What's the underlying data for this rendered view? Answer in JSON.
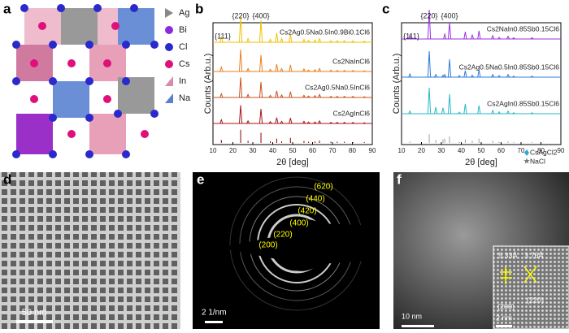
{
  "panel_labels": [
    "a",
    "b",
    "c",
    "d",
    "e",
    "f"
  ],
  "structure": {
    "legend": [
      "Ag",
      "Bi",
      "Cl",
      "Cs",
      "In",
      "Na"
    ]
  },
  "chart_data": [
    {
      "type": "spectrum",
      "x_label": "2θ [deg]",
      "y_label": "Counts (Arb.u.)",
      "xlim": [
        10,
        90
      ],
      "xticks": [
        10,
        20,
        30,
        40,
        50,
        60,
        70,
        80,
        90
      ],
      "annotations": [
        "{220}",
        "{400}",
        "{111}"
      ],
      "x": [
        14.2,
        23.9,
        27.6,
        34.1,
        38.8,
        42.0,
        44.5,
        48.9,
        55.7,
        58.0,
        61.2,
        63.5,
        69.2,
        72.4,
        76.0,
        80.3,
        86.0
      ],
      "series": [
        {
          "name": "Cs2Ag0.5Na0.5In0.9Bi0.1Cl6",
          "color": "#f2c200",
          "values": [
            15,
            70,
            10,
            60,
            8,
            25,
            10,
            22,
            8,
            5,
            6,
            10,
            4,
            4,
            4,
            4,
            3
          ]
        },
        {
          "name": "Cs2NaInCl6",
          "color": "#e8801e",
          "values": [
            12,
            60,
            8,
            45,
            6,
            20,
            8,
            18,
            7,
            4,
            5,
            8,
            4,
            3,
            3,
            3,
            2
          ]
        },
        {
          "name": "Cs2Ag0.5Na0.5InCl6",
          "color": "#c9521e",
          "values": [
            10,
            55,
            8,
            42,
            6,
            18,
            7,
            16,
            6,
            4,
            5,
            8,
            3,
            3,
            3,
            3,
            2
          ]
        },
        {
          "name": "Cs2AgInCl6",
          "color": "#a8141c",
          "values": [
            10,
            50,
            7,
            40,
            5,
            16,
            6,
            15,
            6,
            4,
            4,
            7,
            3,
            3,
            3,
            3,
            2
          ]
        }
      ],
      "reference": {
        "color": "#8b0000",
        "values": [
          20,
          90,
          15,
          70,
          12,
          30,
          12,
          35,
          14,
          8,
          10,
          16,
          8,
          8,
          8,
          6,
          6
        ]
      }
    },
    {
      "type": "spectrum",
      "x_label": "2θ [deg]",
      "y_label": "Counts (Arb.u.)",
      "xlim": [
        10,
        90
      ],
      "xticks": [
        10,
        20,
        30,
        40,
        50,
        60,
        70,
        80,
        90
      ],
      "annotations": [
        "{220}",
        "{400}",
        "{111}"
      ],
      "x": [
        14.2,
        23.9,
        27.2,
        30.8,
        31.7,
        34.1,
        39.0,
        42.0,
        45.5,
        48.9,
        55.8,
        59.0,
        63.5,
        66.3,
        75.5
      ],
      "series": [
        {
          "name": "Cs2NaIn0.85Sb0.15Cl6",
          "color": "#9b30e0",
          "values": [
            12,
            90,
            0,
            0,
            15,
            50,
            0,
            22,
            12,
            25,
            10,
            5,
            8,
            4,
            4
          ]
        },
        {
          "name": "Cs2Ag0.5Na0.5In0.85Sb0.15Cl6",
          "color": "#2e7bd6",
          "values": [
            10,
            80,
            8,
            6,
            8,
            55,
            5,
            20,
            6,
            22,
            8,
            5,
            8,
            3,
            3
          ]
        },
        {
          "name": "Cs2AgIn0.85Sb0.15Cl6",
          "color": "#2ab8c8",
          "values": [
            8,
            80,
            20,
            18,
            0,
            60,
            5,
            30,
            0,
            25,
            10,
            6,
            8,
            3,
            3
          ]
        }
      ],
      "reference": {
        "color": "#9aa4ad",
        "values": [
          10,
          60,
          20,
          25,
          30,
          45,
          8,
          25,
          15,
          30,
          15,
          8,
          12,
          6,
          6
        ]
      },
      "legend": [
        "CsAgCl2",
        "NaCl"
      ]
    }
  ],
  "images": {
    "d": {
      "scale_bar": "50 nm"
    },
    "e": {
      "scale_bar": "2 1/nm",
      "rings": [
        "(620)",
        "(440)",
        "(420)",
        "(400)",
        "(220)",
        "(200)"
      ]
    },
    "f": {
      "scale_bar": "10 nm",
      "inset_scale_bar": "2 nm",
      "d_spacings": [
        "5.33Å",
        "3.76Å"
      ],
      "planes": [
        "(200)",
        "(220)"
      ]
    }
  }
}
